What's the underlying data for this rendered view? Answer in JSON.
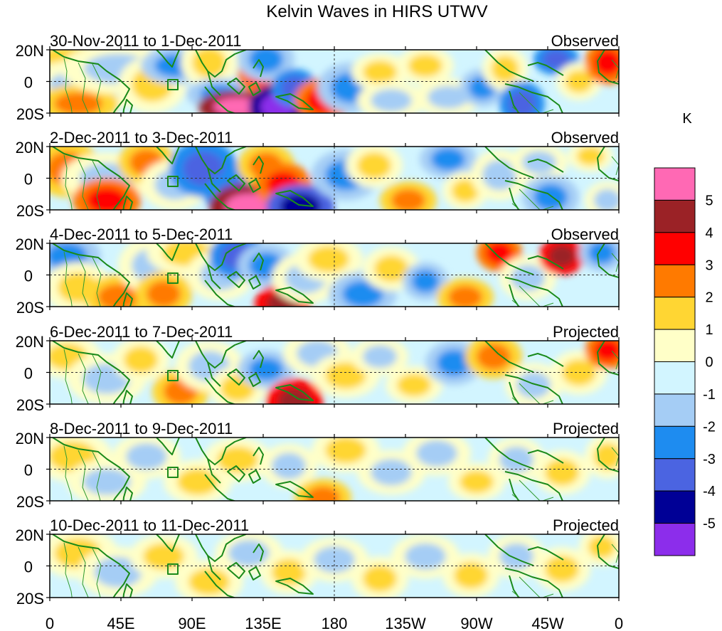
{
  "title": "Kelvin Waves in HIRS UTWV",
  "lat_ticks": [
    "20N",
    "0",
    "20S"
  ],
  "lon_ticks": [
    "0",
    "45E",
    "90E",
    "135E",
    "180",
    "135W",
    "90W",
    "45W",
    "0"
  ],
  "panels": [
    {
      "period": "30-Nov-2011 to 1-Dec-2011",
      "kind": "Observed"
    },
    {
      "period": "2-Dec-2011 to 3-Dec-2011",
      "kind": "Observed"
    },
    {
      "period": "4-Dec-2011 to 5-Dec-2011",
      "kind": "Observed"
    },
    {
      "period": "6-Dec-2011 to 7-Dec-2011",
      "kind": "Projected"
    },
    {
      "period": "8-Dec-2011 to 9-Dec-2011",
      "kind": "Projected"
    },
    {
      "period": "10-Dec-2011 to 11-Dec-2011",
      "kind": "Projected"
    }
  ],
  "colorbar": {
    "unit": "K",
    "levels": [
      "5",
      "4",
      "3",
      "2",
      "1",
      "0",
      "-1",
      "-2",
      "-3",
      "-4",
      "-5"
    ],
    "colors": [
      "#ff69b4",
      "#9b2226",
      "#ff0000",
      "#ff7a00",
      "#ffd633",
      "#ffffc8",
      "#d2f5ff",
      "#a5cdf5",
      "#1e8cf0",
      "#4b64e1",
      "#000096",
      "#8c2deb"
    ]
  },
  "anomaly_blobs": [
    [
      [
        0.04,
        0.15,
        0.12,
        0.35,
        1
      ],
      [
        0.07,
        0.55,
        0.12,
        0.4,
        -1
      ],
      [
        0.05,
        0.85,
        0.07,
        0.3,
        2
      ],
      [
        0.12,
        0.3,
        0.1,
        0.4,
        -1
      ],
      [
        0.18,
        0.55,
        0.06,
        0.45,
        1
      ],
      [
        0.22,
        0.25,
        0.06,
        0.3,
        -2
      ],
      [
        0.28,
        0.2,
        0.05,
        0.4,
        1
      ],
      [
        0.3,
        0.7,
        0.06,
        0.25,
        -2
      ],
      [
        0.33,
        0.9,
        0.07,
        0.25,
        5
      ],
      [
        0.37,
        0.4,
        0.04,
        0.3,
        3
      ],
      [
        0.4,
        0.9,
        0.05,
        0.35,
        -5
      ],
      [
        0.38,
        0.15,
        0.05,
        0.35,
        -2
      ],
      [
        0.43,
        0.6,
        0.04,
        0.3,
        -3
      ],
      [
        0.48,
        0.8,
        0.05,
        0.35,
        3
      ],
      [
        0.53,
        0.6,
        0.06,
        0.4,
        -2
      ],
      [
        0.58,
        0.35,
        0.05,
        0.3,
        1
      ],
      [
        0.6,
        0.8,
        0.06,
        0.3,
        -1
      ],
      [
        0.66,
        0.25,
        0.05,
        0.3,
        1
      ],
      [
        0.7,
        0.75,
        0.06,
        0.3,
        -1
      ],
      [
        0.76,
        0.6,
        0.04,
        0.3,
        -2
      ],
      [
        0.8,
        0.3,
        0.04,
        0.35,
        1
      ],
      [
        0.83,
        0.85,
        0.04,
        0.35,
        -3
      ],
      [
        0.89,
        0.15,
        0.04,
        0.25,
        -3
      ],
      [
        0.93,
        0.5,
        0.04,
        0.3,
        1
      ],
      [
        0.98,
        0.2,
        0.04,
        0.35,
        3
      ]
    ],
    [
      [
        0.03,
        0.35,
        0.06,
        0.45,
        2
      ],
      [
        0.1,
        0.5,
        0.08,
        0.4,
        -1
      ],
      [
        0.1,
        0.85,
        0.06,
        0.35,
        3
      ],
      [
        0.17,
        0.25,
        0.05,
        0.35,
        2
      ],
      [
        0.22,
        0.6,
        0.06,
        0.4,
        -1
      ],
      [
        0.27,
        0.35,
        0.06,
        0.45,
        -3
      ],
      [
        0.33,
        0.75,
        0.06,
        0.35,
        -3
      ],
      [
        0.35,
        0.95,
        0.07,
        0.35,
        5
      ],
      [
        0.38,
        0.3,
        0.05,
        0.35,
        2
      ],
      [
        0.41,
        0.6,
        0.05,
        0.35,
        3
      ],
      [
        0.44,
        0.95,
        0.06,
        0.35,
        -4
      ],
      [
        0.52,
        0.45,
        0.06,
        0.4,
        -2
      ],
      [
        0.57,
        0.3,
        0.05,
        0.35,
        1
      ],
      [
        0.63,
        0.85,
        0.05,
        0.3,
        2
      ],
      [
        0.7,
        0.2,
        0.05,
        0.3,
        -2
      ],
      [
        0.73,
        0.7,
        0.04,
        0.3,
        1
      ],
      [
        0.79,
        0.45,
        0.05,
        0.4,
        -1
      ],
      [
        0.86,
        0.25,
        0.05,
        0.3,
        -1
      ],
      [
        0.88,
        0.8,
        0.05,
        0.35,
        -2
      ],
      [
        0.95,
        0.15,
        0.04,
        0.25,
        1
      ],
      [
        0.98,
        0.85,
        0.04,
        0.3,
        -1
      ]
    ],
    [
      [
        0.03,
        0.2,
        0.06,
        0.35,
        -2
      ],
      [
        0.05,
        0.7,
        0.06,
        0.4,
        1
      ],
      [
        0.12,
        0.85,
        0.06,
        0.35,
        2
      ],
      [
        0.18,
        0.35,
        0.06,
        0.45,
        -1
      ],
      [
        0.2,
        0.8,
        0.05,
        0.35,
        2
      ],
      [
        0.24,
        0.15,
        0.07,
        0.35,
        1
      ],
      [
        0.3,
        0.5,
        0.06,
        0.4,
        -1
      ],
      [
        0.33,
        0.2,
        0.05,
        0.35,
        -3
      ],
      [
        0.38,
        0.35,
        0.05,
        0.35,
        -2
      ],
      [
        0.41,
        0.95,
        0.05,
        0.3,
        4
      ],
      [
        0.45,
        0.55,
        0.06,
        0.4,
        -1
      ],
      [
        0.49,
        0.25,
        0.06,
        0.35,
        1
      ],
      [
        0.55,
        0.8,
        0.06,
        0.35,
        -2
      ],
      [
        0.6,
        0.4,
        0.05,
        0.35,
        1
      ],
      [
        0.66,
        0.6,
        0.04,
        0.3,
        -2
      ],
      [
        0.73,
        0.85,
        0.05,
        0.3,
        2
      ],
      [
        0.79,
        0.15,
        0.04,
        0.3,
        3
      ],
      [
        0.84,
        0.55,
        0.05,
        0.35,
        -1
      ],
      [
        0.9,
        0.2,
        0.04,
        0.3,
        4
      ],
      [
        0.97,
        0.15,
        0.04,
        0.3,
        -2
      ]
    ],
    [
      [
        0.03,
        0.25,
        0.06,
        0.35,
        1
      ],
      [
        0.1,
        0.6,
        0.07,
        0.4,
        -1
      ],
      [
        0.16,
        0.3,
        0.05,
        0.35,
        1
      ],
      [
        0.23,
        0.8,
        0.05,
        0.35,
        2
      ],
      [
        0.28,
        0.4,
        0.06,
        0.4,
        -1
      ],
      [
        0.33,
        0.75,
        0.05,
        0.35,
        1
      ],
      [
        0.38,
        0.45,
        0.05,
        0.3,
        -2
      ],
      [
        0.43,
        0.95,
        0.05,
        0.35,
        4
      ],
      [
        0.47,
        0.2,
        0.06,
        0.35,
        -1
      ],
      [
        0.52,
        0.55,
        0.06,
        0.35,
        1
      ],
      [
        0.58,
        0.25,
        0.05,
        0.3,
        -1
      ],
      [
        0.64,
        0.7,
        0.05,
        0.3,
        1
      ],
      [
        0.71,
        0.35,
        0.05,
        0.35,
        -2
      ],
      [
        0.78,
        0.25,
        0.05,
        0.35,
        2
      ],
      [
        0.85,
        0.7,
        0.05,
        0.35,
        -1
      ],
      [
        0.93,
        0.5,
        0.05,
        0.35,
        1
      ],
      [
        0.98,
        0.15,
        0.04,
        0.3,
        3
      ]
    ],
    [
      [
        0.04,
        0.3,
        0.07,
        0.4,
        1
      ],
      [
        0.1,
        0.7,
        0.07,
        0.35,
        -1
      ],
      [
        0.17,
        0.3,
        0.06,
        0.35,
        -1
      ],
      [
        0.26,
        0.7,
        0.06,
        0.35,
        1
      ],
      [
        0.33,
        0.35,
        0.06,
        0.35,
        1
      ],
      [
        0.42,
        0.45,
        0.05,
        0.35,
        -1
      ],
      [
        0.48,
        0.95,
        0.05,
        0.3,
        2
      ],
      [
        0.52,
        0.2,
        0.06,
        0.35,
        1
      ],
      [
        0.6,
        0.55,
        0.06,
        0.35,
        -1
      ],
      [
        0.68,
        0.25,
        0.06,
        0.35,
        -1
      ],
      [
        0.75,
        0.7,
        0.05,
        0.3,
        1
      ],
      [
        0.82,
        0.35,
        0.05,
        0.35,
        -1
      ],
      [
        0.9,
        0.55,
        0.05,
        0.35,
        1
      ],
      [
        0.98,
        0.3,
        0.04,
        0.35,
        1
      ]
    ],
    [
      [
        0.05,
        0.3,
        0.07,
        0.4,
        1
      ],
      [
        0.12,
        0.6,
        0.07,
        0.4,
        -1
      ],
      [
        0.2,
        0.35,
        0.06,
        0.35,
        1
      ],
      [
        0.28,
        0.75,
        0.06,
        0.35,
        1
      ],
      [
        0.35,
        0.3,
        0.06,
        0.35,
        -1
      ],
      [
        0.42,
        0.6,
        0.05,
        0.35,
        1
      ],
      [
        0.5,
        0.4,
        0.06,
        0.35,
        -1
      ],
      [
        0.58,
        0.7,
        0.05,
        0.35,
        1
      ],
      [
        0.66,
        0.35,
        0.06,
        0.35,
        -1
      ],
      [
        0.74,
        0.65,
        0.05,
        0.35,
        1
      ],
      [
        0.82,
        0.35,
        0.05,
        0.35,
        -1
      ],
      [
        0.9,
        0.55,
        0.05,
        0.35,
        1
      ],
      [
        0.97,
        0.2,
        0.04,
        0.3,
        1
      ]
    ]
  ]
}
